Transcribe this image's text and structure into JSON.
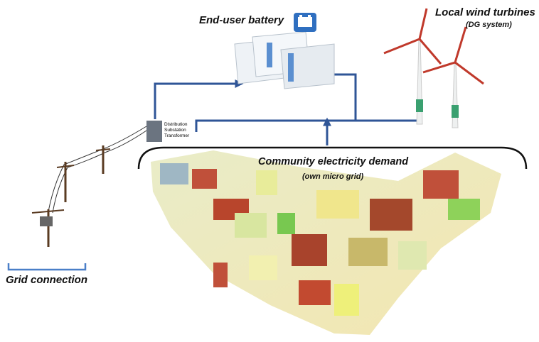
{
  "battery": {
    "label": "End-user battery"
  },
  "wind": {
    "label": "Local wind turbines",
    "sublabel": "(DG system)"
  },
  "transformer": {
    "lines": [
      "Distribution",
      "Substation",
      "Transformer"
    ]
  },
  "demand": {
    "label": "Community electricity demand",
    "sublabel": "(own micro grid)"
  },
  "grid": {
    "label": "Grid connection"
  }
}
